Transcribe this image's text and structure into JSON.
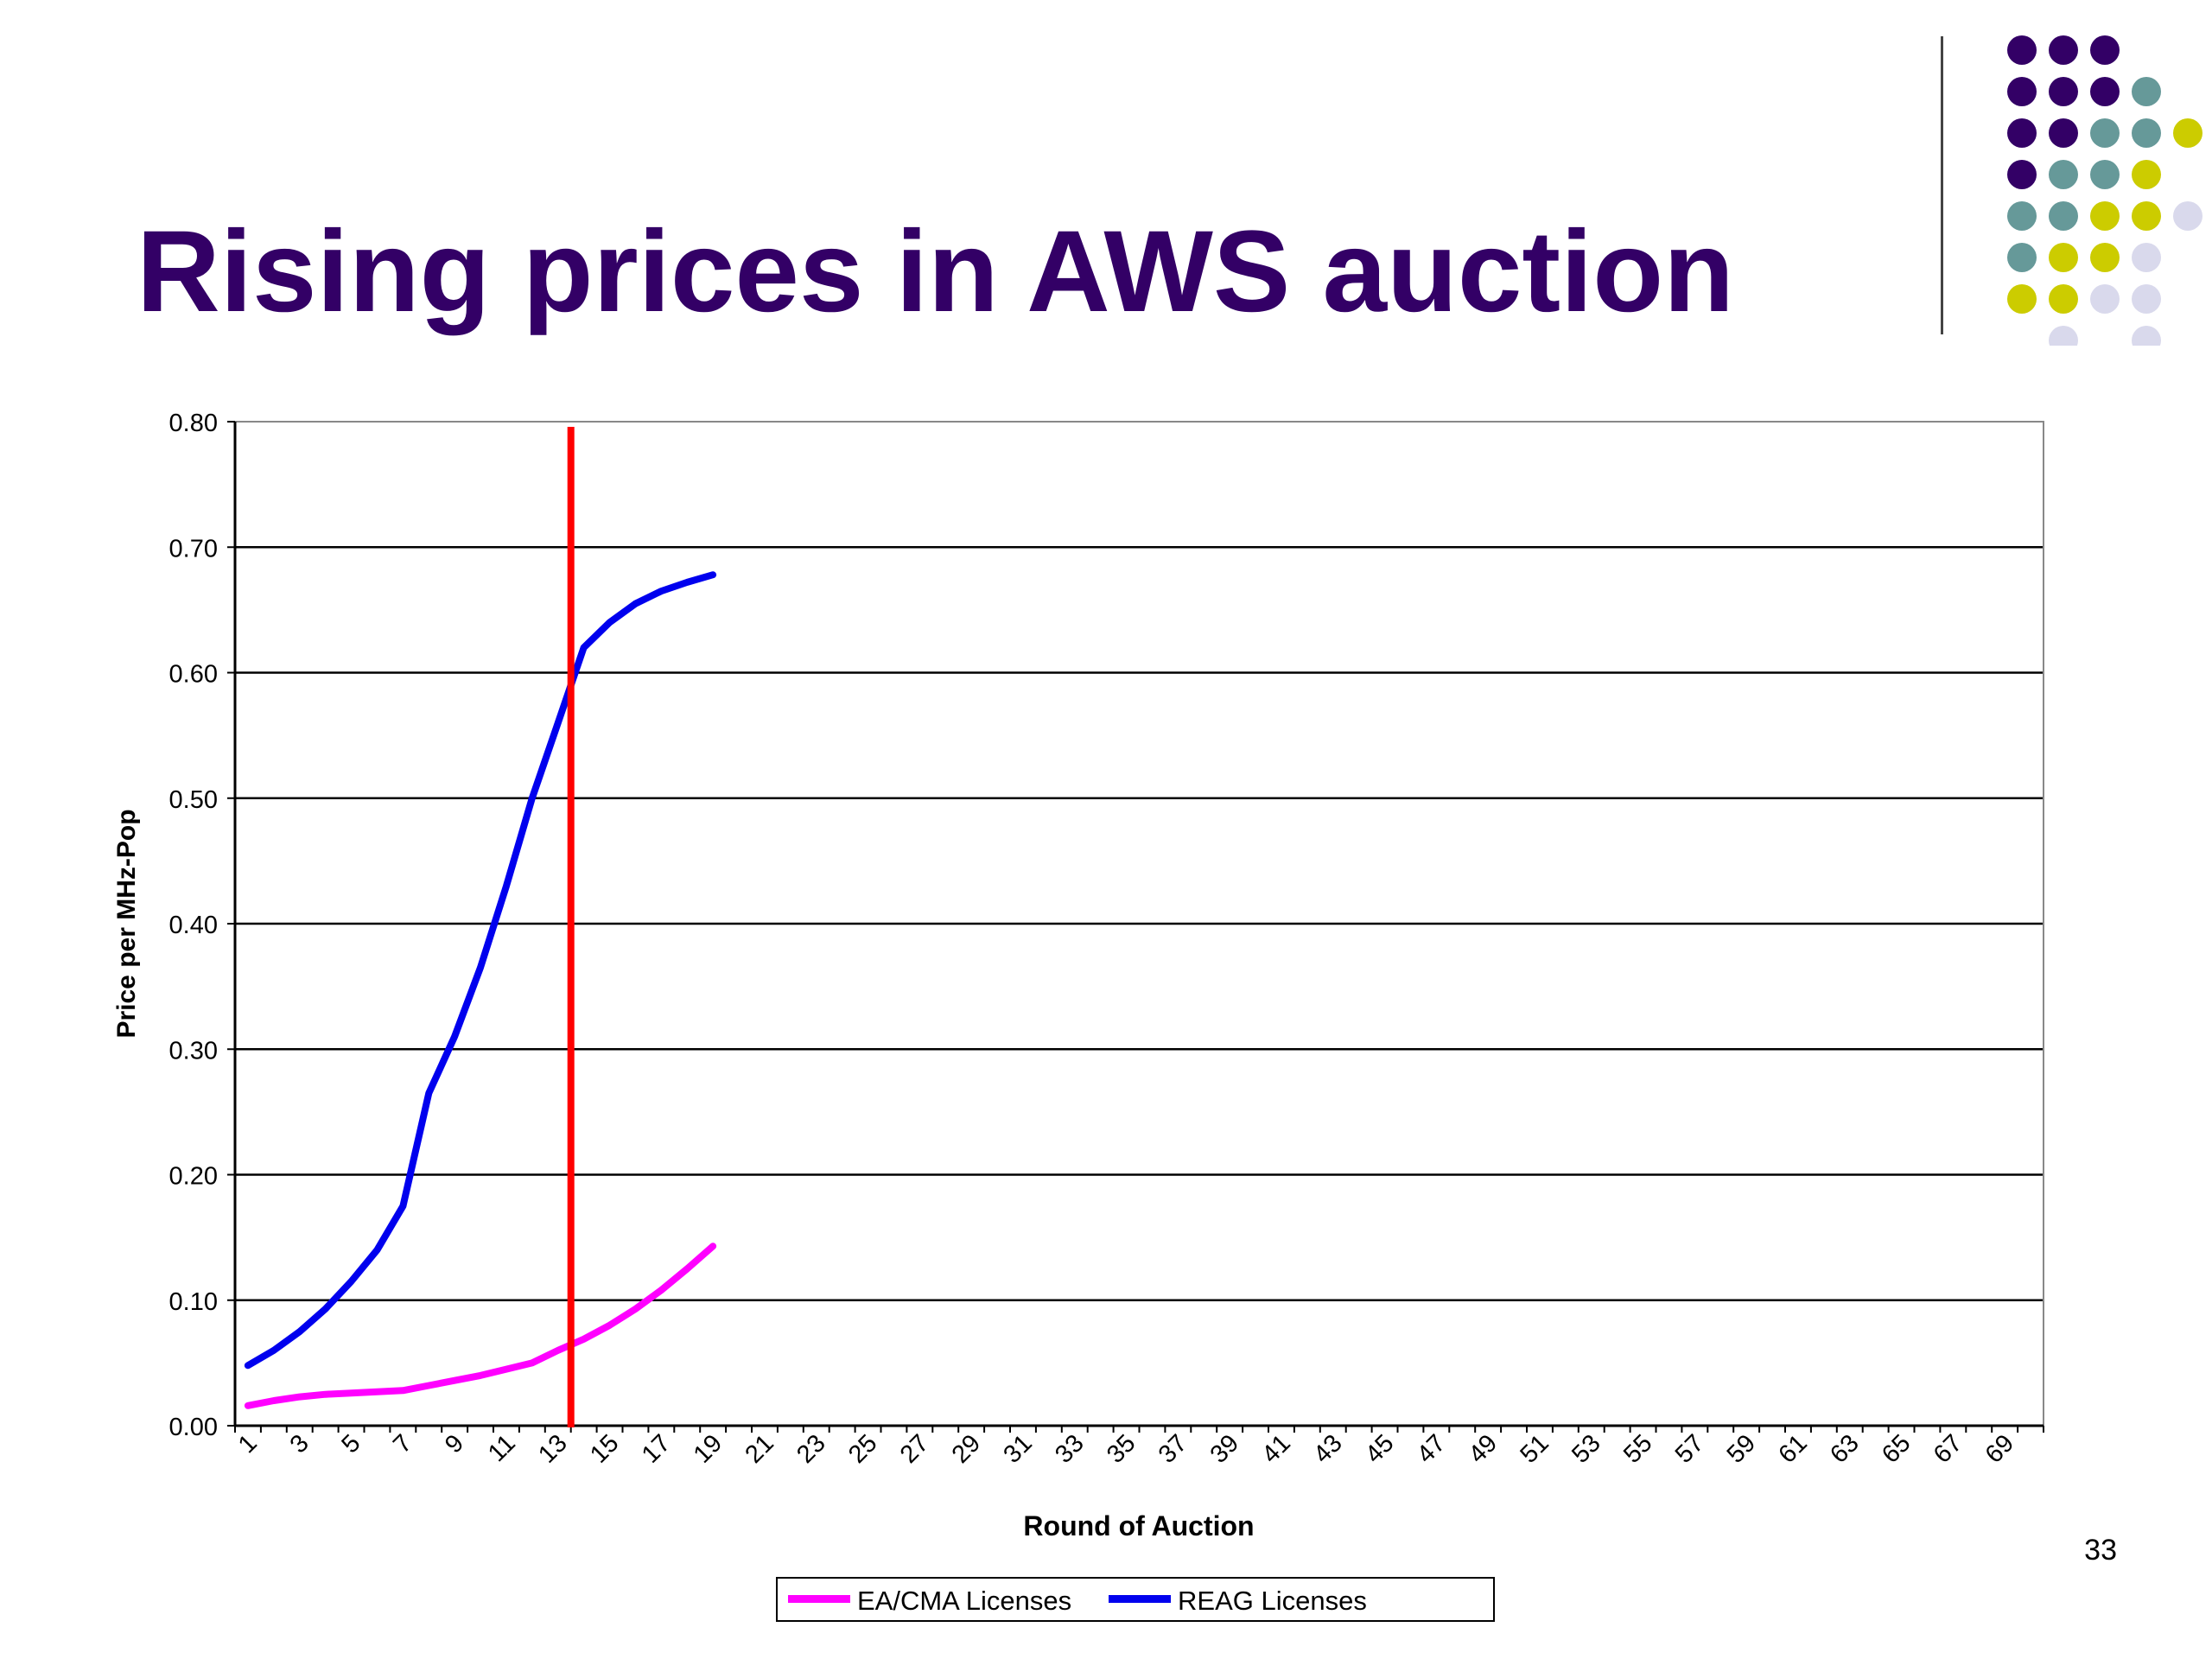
{
  "slide": {
    "title": "Rising prices in AWS auction",
    "page_number": "33",
    "title_color": "#330066"
  },
  "decoration": {
    "dot_palette": [
      "#330066",
      "#669999",
      "#cccc00",
      "#d9d9ec"
    ],
    "dot_grid": [
      [
        0,
        0,
        0,
        null,
        null
      ],
      [
        0,
        0,
        0,
        1,
        null
      ],
      [
        0,
        0,
        1,
        1,
        2
      ],
      [
        0,
        1,
        1,
        2,
        null
      ],
      [
        1,
        1,
        2,
        2,
        3
      ],
      [
        1,
        2,
        2,
        3,
        null
      ],
      [
        2,
        2,
        3,
        3,
        null
      ],
      [
        null,
        3,
        null,
        3,
        null
      ]
    ]
  },
  "chart_data": {
    "type": "line",
    "title": "",
    "xlabel": "Round of Auction",
    "ylabel": "Price per MHz-Pop",
    "x_categories_count": 70,
    "x_tick_labels": [
      "1",
      "3",
      "5",
      "7",
      "9",
      "11",
      "13",
      "15",
      "17",
      "19",
      "21",
      "23",
      "25",
      "27",
      "29",
      "31",
      "33",
      "35",
      "37",
      "39",
      "41",
      "43",
      "45",
      "47",
      "49",
      "51",
      "53",
      "55",
      "57",
      "59",
      "61",
      "63",
      "65",
      "67",
      "69"
    ],
    "y_tick_labels": [
      "0.00",
      "0.10",
      "0.20",
      "0.30",
      "0.40",
      "0.50",
      "0.60",
      "0.70",
      "0.80"
    ],
    "ylim": [
      0,
      0.8
    ],
    "grid": true,
    "legend_position": "bottom",
    "series": [
      {
        "name": "EA/CMA Licenses",
        "color": "#ff00ff",
        "x": [
          1,
          2,
          3,
          4,
          5,
          6,
          7,
          8,
          9,
          10,
          11,
          12,
          13,
          14,
          15,
          16,
          17,
          18,
          19
        ],
        "values": [
          0.016,
          0.02,
          0.023,
          0.025,
          0.026,
          0.027,
          0.028,
          0.032,
          0.036,
          0.04,
          0.045,
          0.05,
          0.06,
          0.069,
          0.08,
          0.093,
          0.108,
          0.125,
          0.143
        ]
      },
      {
        "name": "REAG Licenses",
        "color": "#0000ee",
        "x": [
          1,
          2,
          3,
          4,
          5,
          6,
          7,
          8,
          9,
          10,
          11,
          12,
          13,
          14,
          15,
          16,
          17,
          18,
          19
        ],
        "values": [
          0.048,
          0.06,
          0.075,
          0.093,
          0.115,
          0.14,
          0.175,
          0.265,
          0.31,
          0.365,
          0.43,
          0.5,
          0.56,
          0.62,
          0.64,
          0.655,
          0.665,
          0.672,
          0.678
        ]
      }
    ],
    "reference_line": {
      "x": 13.5,
      "color": "#ff0000"
    }
  }
}
